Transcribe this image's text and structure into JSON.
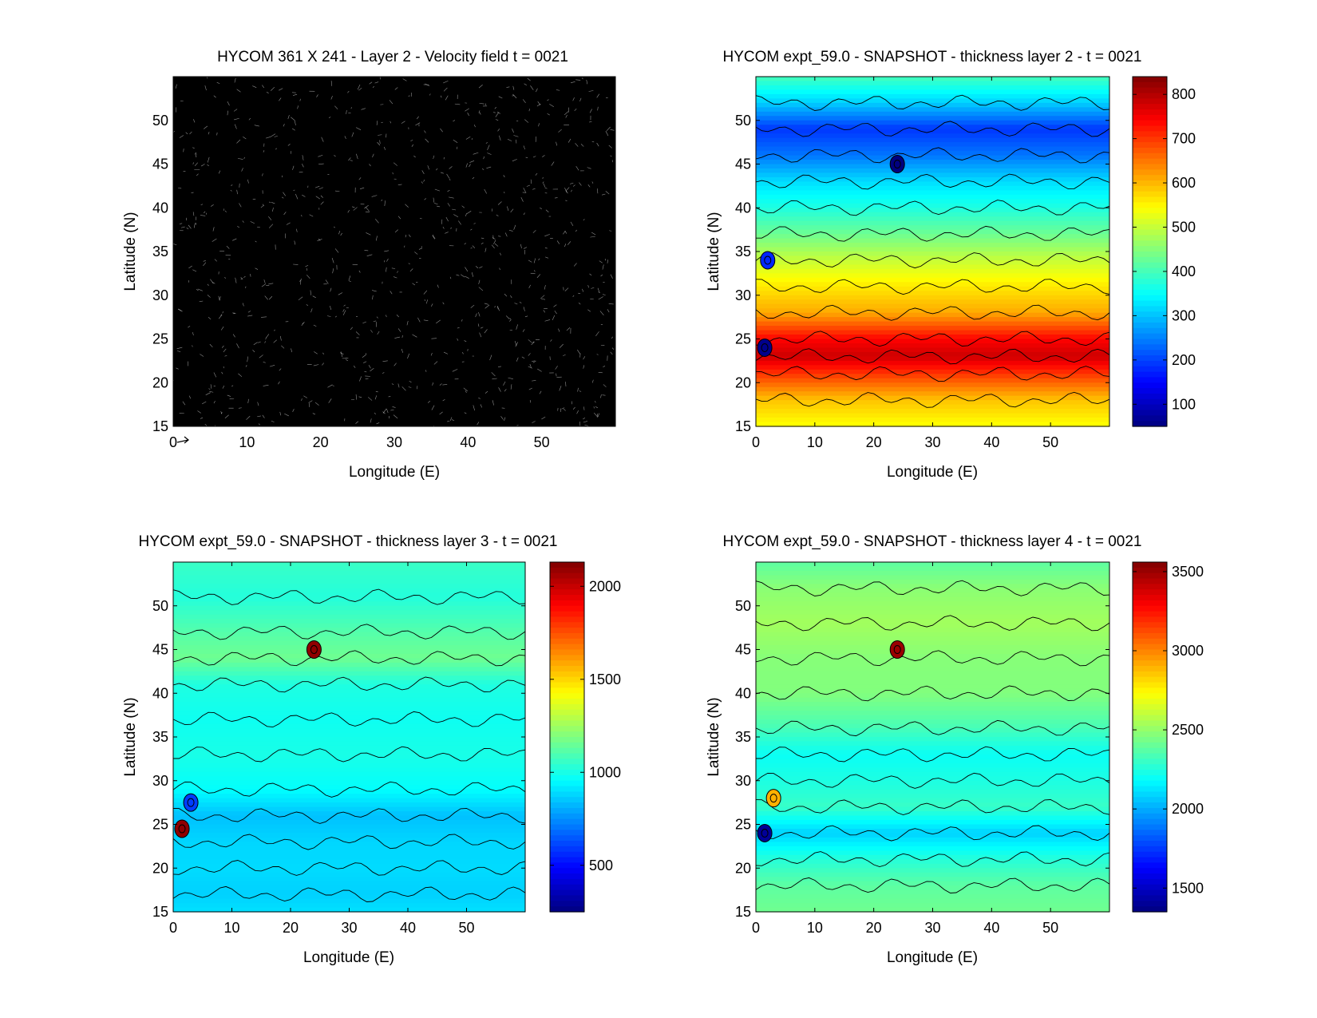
{
  "figure": {
    "background": "#ffffff"
  },
  "chart_data": [
    {
      "id": "velocity",
      "type": "heatmap",
      "title": "HYCOM 361 X 241 - Layer 2 - Velocity field  t = 0021",
      "xlabel": "Longitude (E)",
      "ylabel": "Latitude (N)",
      "xlim": [
        0,
        60
      ],
      "ylim": [
        15,
        55
      ],
      "xticks": [
        0,
        10,
        20,
        30,
        40,
        50
      ],
      "yticks": [
        15,
        20,
        25,
        30,
        35,
        40,
        45,
        50
      ],
      "field": "quiver",
      "fill_color": "#000000",
      "colorbar": null
    },
    {
      "id": "layer2",
      "type": "heatmap",
      "title": "HYCOM expt_59.0 - SNAPSHOT - thickness layer 2 - t = 0021",
      "xlabel": "Longitude (E)",
      "ylabel": "Latitude (N)",
      "xlim": [
        0,
        60
      ],
      "ylim": [
        15,
        55
      ],
      "xticks": [
        0,
        10,
        20,
        30,
        40,
        50
      ],
      "yticks": [
        15,
        20,
        25,
        30,
        35,
        40,
        45,
        50
      ],
      "field": "contourf",
      "colorbar": {
        "min": 50,
        "max": 840,
        "ticks": [
          100,
          200,
          300,
          400,
          500,
          600,
          700,
          800
        ]
      },
      "bands": [
        {
          "lat": 55,
          "value": 400
        },
        {
          "lat": 52,
          "value": 310
        },
        {
          "lat": 49,
          "value": 190
        },
        {
          "lat": 46,
          "value": 240
        },
        {
          "lat": 43,
          "value": 320
        },
        {
          "lat": 40,
          "value": 370
        },
        {
          "lat": 37,
          "value": 430
        },
        {
          "lat": 34,
          "value": 500
        },
        {
          "lat": 31,
          "value": 560
        },
        {
          "lat": 28,
          "value": 610
        },
        {
          "lat": 25,
          "value": 740
        },
        {
          "lat": 23,
          "value": 780
        },
        {
          "lat": 21,
          "value": 700
        },
        {
          "lat": 18,
          "value": 590
        },
        {
          "lat": 15,
          "value": 540
        }
      ],
      "eddies": [
        {
          "lon": 24,
          "lat": 45,
          "value": 40
        },
        {
          "lon": 1.5,
          "lat": 24,
          "value": 60
        },
        {
          "lon": 2,
          "lat": 34,
          "value": 180
        }
      ]
    },
    {
      "id": "layer3",
      "type": "heatmap",
      "title": "HYCOM expt_59.0 - SNAPSHOT - thickness layer 3 - t = 0021",
      "xlabel": "Longitude (E)",
      "ylabel": "Latitude (N)",
      "xlim": [
        0,
        60
      ],
      "ylim": [
        15,
        55
      ],
      "xticks": [
        0,
        10,
        20,
        30,
        40,
        50
      ],
      "yticks": [
        15,
        20,
        25,
        30,
        35,
        40,
        45,
        50
      ],
      "field": "contourf",
      "colorbar": {
        "min": 250,
        "max": 2130,
        "ticks": [
          500,
          1000,
          1500,
          2000
        ]
      },
      "bands": [
        {
          "lat": 55,
          "value": 1060
        },
        {
          "lat": 51,
          "value": 1020
        },
        {
          "lat": 47,
          "value": 1110
        },
        {
          "lat": 44,
          "value": 1160
        },
        {
          "lat": 41,
          "value": 1010
        },
        {
          "lat": 37,
          "value": 980
        },
        {
          "lat": 33,
          "value": 1000
        },
        {
          "lat": 29,
          "value": 960
        },
        {
          "lat": 26,
          "value": 840
        },
        {
          "lat": 23,
          "value": 880
        },
        {
          "lat": 20,
          "value": 890
        },
        {
          "lat": 17,
          "value": 870
        },
        {
          "lat": 15,
          "value": 900
        }
      ],
      "eddies": [
        {
          "lon": 24,
          "lat": 45,
          "value": 2100
        },
        {
          "lon": 1.5,
          "lat": 24.5,
          "value": 2100
        },
        {
          "lon": 3,
          "lat": 27.5,
          "value": 600
        }
      ]
    },
    {
      "id": "layer4",
      "type": "heatmap",
      "title": "HYCOM expt_59.0 - SNAPSHOT - thickness layer 4 - t = 0021",
      "xlabel": "Longitude (E)",
      "ylabel": "Latitude (N)",
      "xlim": [
        0,
        60
      ],
      "ylim": [
        15,
        55
      ],
      "xticks": [
        0,
        10,
        20,
        30,
        40,
        50
      ],
      "yticks": [
        15,
        20,
        25,
        30,
        35,
        40,
        45,
        50
      ],
      "field": "contourf",
      "colorbar": {
        "min": 1350,
        "max": 3560,
        "ticks": [
          1500,
          2000,
          2500,
          3000,
          3500
        ]
      },
      "bands": [
        {
          "lat": 55,
          "value": 2380
        },
        {
          "lat": 52,
          "value": 2480
        },
        {
          "lat": 48,
          "value": 2530
        },
        {
          "lat": 44,
          "value": 2470
        },
        {
          "lat": 40,
          "value": 2460
        },
        {
          "lat": 36,
          "value": 2330
        },
        {
          "lat": 33,
          "value": 2200
        },
        {
          "lat": 30,
          "value": 2240
        },
        {
          "lat": 27,
          "value": 2300
        },
        {
          "lat": 24,
          "value": 2080
        },
        {
          "lat": 21,
          "value": 2260
        },
        {
          "lat": 18,
          "value": 2380
        },
        {
          "lat": 15,
          "value": 2420
        }
      ],
      "eddies": [
        {
          "lon": 24,
          "lat": 45,
          "value": 3500
        },
        {
          "lon": 1.5,
          "lat": 24,
          "value": 1400
        },
        {
          "lon": 3,
          "lat": 28,
          "value": 2900
        }
      ]
    }
  ]
}
